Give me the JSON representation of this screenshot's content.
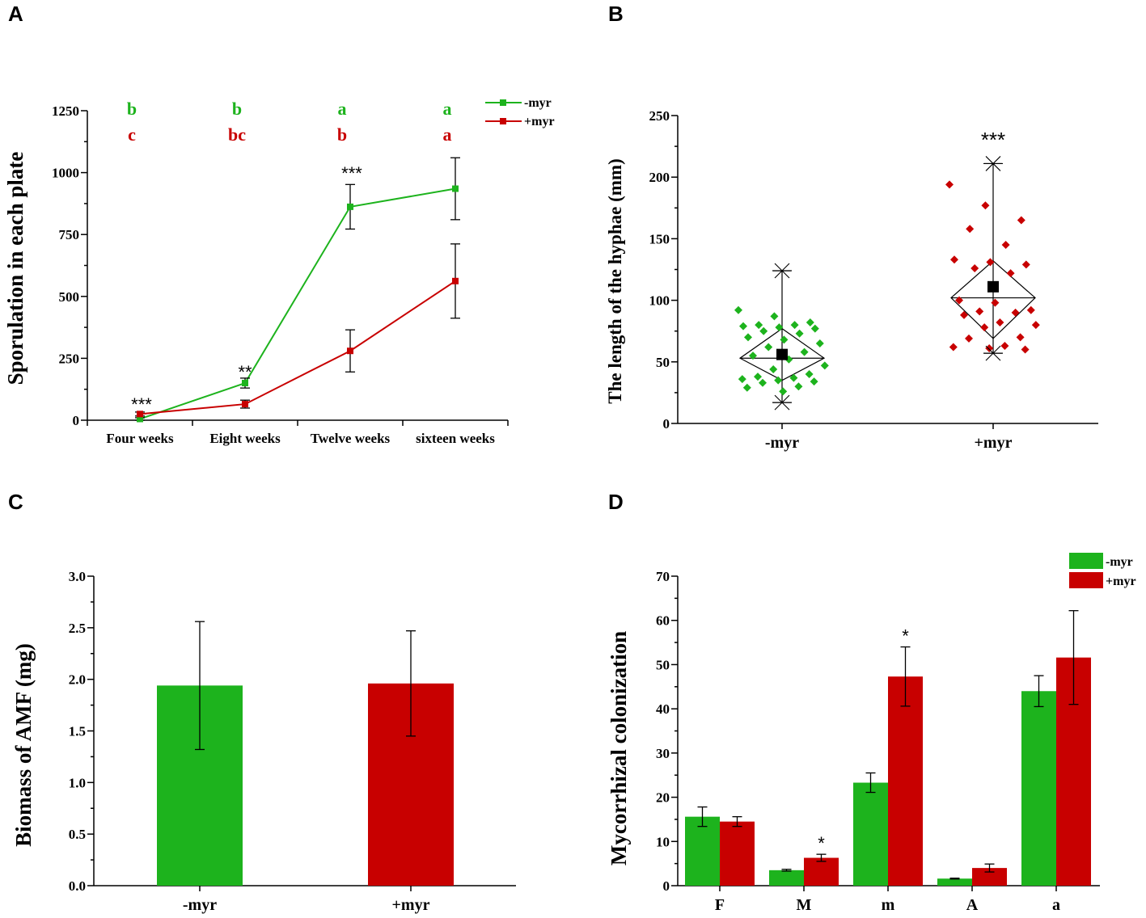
{
  "panels": {
    "A": "A",
    "B": "B",
    "C": "C",
    "D": "D"
  },
  "colors": {
    "minus": "#1db31d",
    "plus": "#c80000"
  },
  "chart_data": [
    {
      "id": "A",
      "type": "line",
      "title": "",
      "xlabel": "",
      "ylabel": "Sporulation in each plate",
      "categories": [
        "Four weeks",
        "Eight weeks",
        "Twelve weeks",
        "sixteen weeks"
      ],
      "ylim": [
        0,
        1250
      ],
      "yticks": [
        "0",
        "250",
        "500",
        "750",
        "1000",
        "1250"
      ],
      "series": [
        {
          "name": "-myr",
          "values": [
            5,
            150,
            862,
            935
          ],
          "errors": [
            5,
            20,
            90,
            125
          ],
          "letters": [
            "b",
            "b",
            "a",
            "a"
          ]
        },
        {
          "name": "+myr",
          "values": [
            25,
            65,
            280,
            562
          ],
          "errors": [
            8,
            16,
            85,
            150
          ],
          "letters": [
            "c",
            "bc",
            "b",
            "a"
          ]
        }
      ],
      "significance": [
        "***",
        "**",
        "***",
        ""
      ],
      "legend": [
        "-myr",
        "+myr"
      ]
    },
    {
      "id": "B",
      "type": "scatter",
      "title": "",
      "xlabel": "",
      "ylabel": "The length of the hyphae (mm)",
      "categories": [
        "-myr",
        "+myr"
      ],
      "ylim": [
        0,
        250
      ],
      "yticks": [
        "0",
        "50",
        "100",
        "150",
        "200",
        "250"
      ],
      "groups": [
        {
          "name": "-myr",
          "mean": 56,
          "median": 53,
          "q1": 35,
          "q3": 77,
          "min": 17,
          "max": 124,
          "points": [
            92,
            87,
            82,
            80,
            80,
            79,
            78,
            77,
            75,
            73,
            70,
            68,
            65,
            62,
            58,
            55,
            52,
            47,
            44,
            40,
            38,
            37,
            36,
            35,
            34,
            33,
            30,
            29,
            26
          ]
        },
        {
          "name": "+myr",
          "mean": 111,
          "median": 102,
          "q1": 69,
          "q3": 132,
          "min": 57,
          "max": 211,
          "points": [
            194,
            177,
            165,
            158,
            145,
            133,
            131,
            129,
            126,
            122,
            100,
            98,
            92,
            91,
            90,
            88,
            82,
            80,
            78,
            70,
            69,
            63,
            62,
            61,
            60
          ]
        }
      ],
      "significance": [
        "",
        "***"
      ]
    },
    {
      "id": "C",
      "type": "bar",
      "title": "",
      "xlabel": "",
      "ylabel": "Biomass of AMF (mg)",
      "categories": [
        "-myr",
        "+myr"
      ],
      "ylim": [
        0,
        3.0
      ],
      "yticks": [
        "0.0",
        "0.5",
        "1.0",
        "1.5",
        "2.0",
        "2.5",
        "3.0"
      ],
      "values": [
        1.94,
        1.96
      ],
      "errors": [
        0.62,
        0.51
      ]
    },
    {
      "id": "D",
      "type": "bar",
      "title": "",
      "xlabel": "",
      "ylabel": "Mycorrhizal colonization",
      "categories": [
        "F",
        "M",
        "m",
        "A",
        "a"
      ],
      "ylim": [
        0,
        70
      ],
      "yticks": [
        "0",
        "10",
        "20",
        "30",
        "40",
        "50",
        "60",
        "70"
      ],
      "series": [
        {
          "name": "-myr",
          "values": [
            15.6,
            3.5,
            23.3,
            1.6,
            44.0
          ],
          "errors": [
            2.2,
            0.2,
            2.2,
            0.1,
            3.5
          ]
        },
        {
          "name": "+myr",
          "values": [
            14.5,
            6.3,
            47.3,
            4.0,
            51.6
          ],
          "errors": [
            1.1,
            0.8,
            6.7,
            0.9,
            10.6
          ]
        }
      ],
      "significance": [
        "",
        "*",
        "*",
        "",
        ""
      ],
      "legend": [
        "-myr",
        "+myr"
      ]
    }
  ]
}
